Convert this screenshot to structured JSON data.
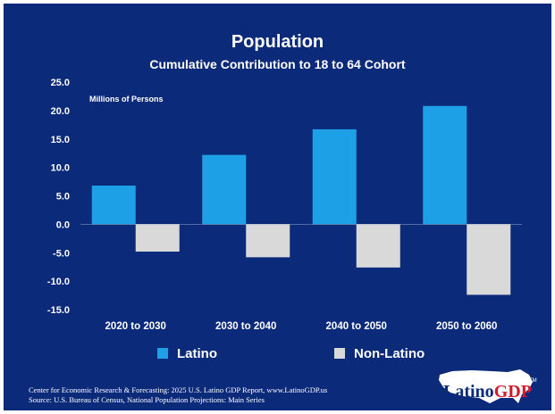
{
  "chart_data": {
    "type": "bar",
    "title": "Population",
    "subtitle": "Cumulative Contribution to 18 to 64 Cohort",
    "ylabel": "Millions of Persons",
    "categories": [
      "2020 to 2030",
      "2030 to 2040",
      "2040 to 2050",
      "2050 to 2060"
    ],
    "series": [
      {
        "name": "Latino",
        "values": [
          6.8,
          12.2,
          16.7,
          20.8
        ],
        "color": "#1ea0e6"
      },
      {
        "name": "Non-Latino",
        "values": [
          -4.8,
          -5.8,
          -7.6,
          -12.4
        ],
        "color": "#d9d9d9"
      }
    ],
    "ylim": [
      -15,
      25
    ],
    "yticks": [
      "25.0",
      "20.0",
      "15.0",
      "10.0",
      "5.0",
      "0.0",
      "-5.0",
      "-10.0",
      "-15.0"
    ],
    "ytick_values": [
      25,
      20,
      15,
      10,
      5,
      0,
      -5,
      -10,
      -15
    ],
    "grid": false,
    "legend": "bottom"
  },
  "footer": {
    "line1": "Center for Economic Research & Forecasting: 2025 U.S. Latino GDP Report, www.LatinoGDP.us",
    "line2": "Source: U.S. Bureau of Census, National Population Projections: Main Series"
  },
  "logo": {
    "part1": "Latino",
    "part2": "GDP",
    "tm": "TM"
  },
  "colors": {
    "background": "#0b2a7a",
    "latino": "#1ea0e6",
    "non_latino": "#d9d9d9"
  }
}
